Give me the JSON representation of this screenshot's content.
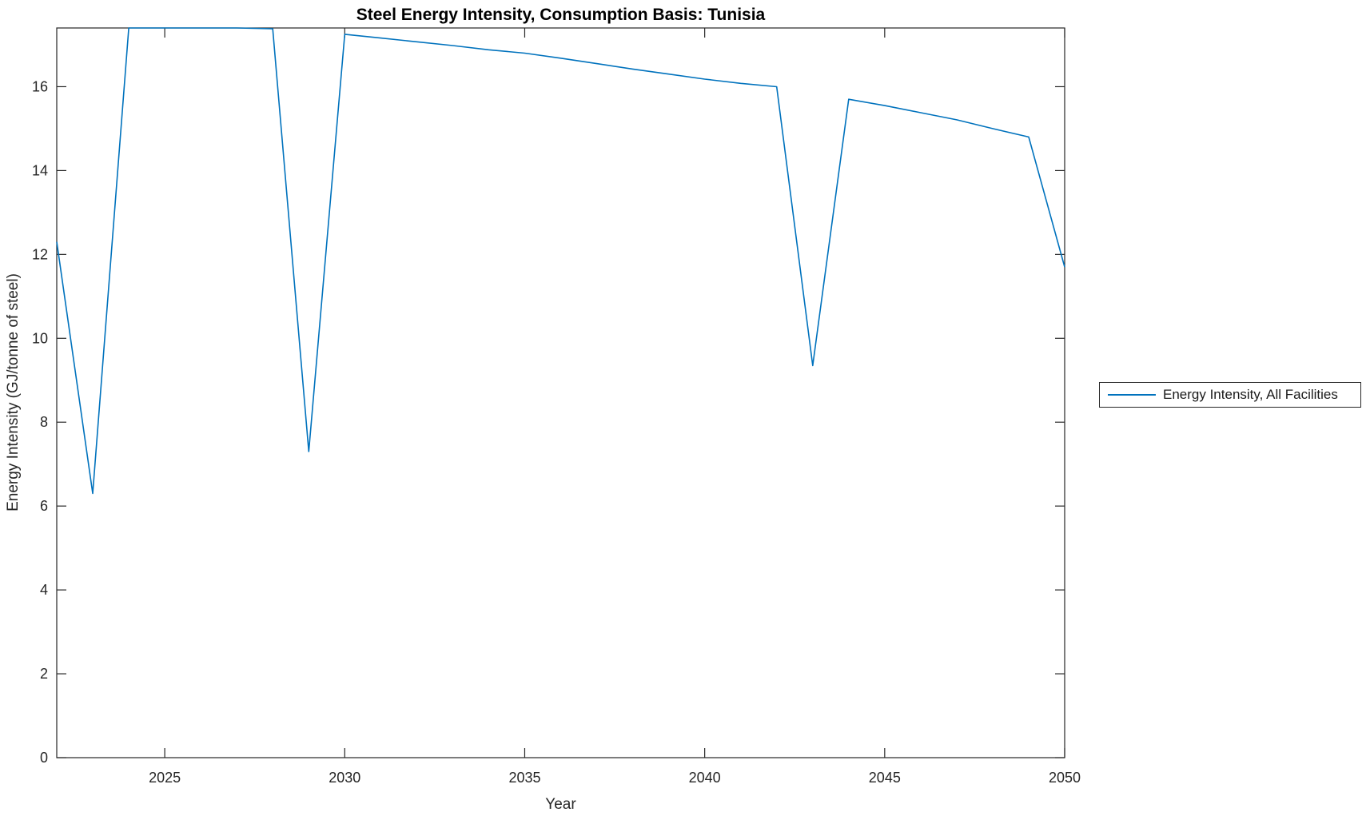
{
  "figure": {
    "background": "#ffffff"
  },
  "chart_data": {
    "type": "line",
    "title": "Steel Energy Intensity, Consumption Basis: Tunisia",
    "xlabel": "Year",
    "ylabel": "Energy Intensity (GJ/tonne of steel)",
    "xlim": [
      2022,
      2050
    ],
    "ylim": [
      0,
      17.4
    ],
    "x_ticks": [
      2025,
      2030,
      2035,
      2040,
      2045,
      2050
    ],
    "y_ticks": [
      0,
      2,
      4,
      6,
      8,
      10,
      12,
      14,
      16
    ],
    "grid": false,
    "legend_position": "right-outside",
    "axis_color": "#262626",
    "x": [
      2022,
      2023,
      2024,
      2025,
      2026,
      2027,
      2028,
      2029,
      2030,
      2031,
      2032,
      2033,
      2034,
      2035,
      2036,
      2037,
      2038,
      2039,
      2040,
      2041,
      2042,
      2043,
      2044,
      2045,
      2046,
      2047,
      2048,
      2049,
      2050
    ],
    "series": [
      {
        "name": "Energy Intensity, All Facilities",
        "color": "#0072BD",
        "values": [
          12.3,
          6.3,
          17.4,
          17.4,
          17.4,
          17.4,
          17.38,
          7.3,
          17.25,
          17.16,
          17.07,
          16.98,
          16.88,
          16.8,
          16.68,
          16.55,
          16.42,
          16.3,
          16.18,
          16.08,
          16.0,
          9.35,
          15.7,
          15.55,
          15.38,
          15.21,
          15.0,
          14.8,
          11.7
        ]
      }
    ]
  }
}
